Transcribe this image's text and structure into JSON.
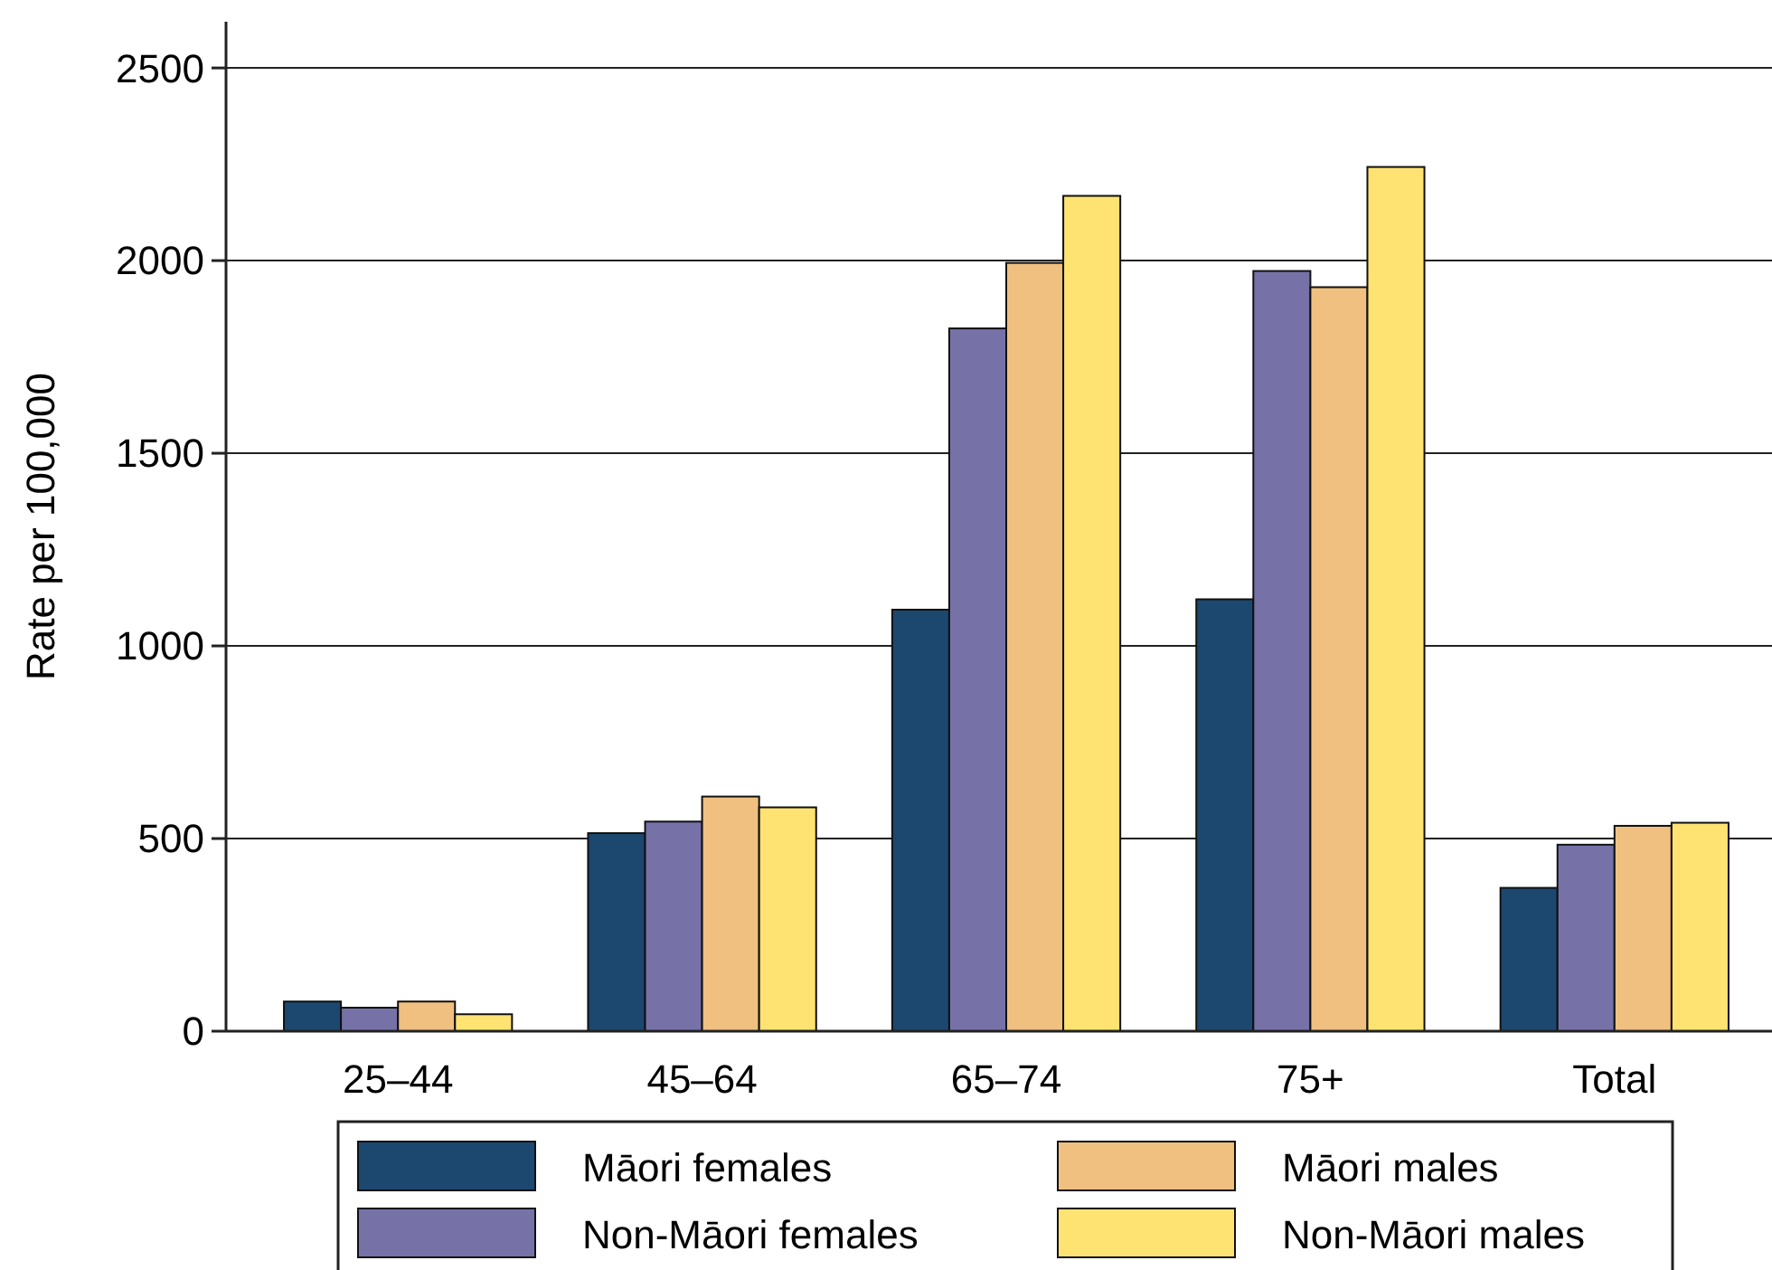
{
  "chart_data": {
    "type": "bar",
    "ylabel": "Rate per 100,000",
    "categories": [
      "25–44",
      "45–64",
      "65–74",
      "75+",
      "Total"
    ],
    "series": [
      {
        "name": "Māori females",
        "color": "#1c4870",
        "values": [
          77,
          514,
          1094,
          1121,
          372
        ]
      },
      {
        "name": "Non-Māori females",
        "color": "#7672a8",
        "values": [
          61,
          544,
          1824,
          1973,
          484
        ]
      },
      {
        "name": "Māori males",
        "color": "#f0c080",
        "values": [
          77,
          609,
          1994,
          1931,
          533
        ]
      },
      {
        "name": "Non-Māori males",
        "color": "#fee372",
        "values": [
          44,
          581,
          2168,
          2243,
          541
        ]
      }
    ],
    "ylim": [
      0,
      2620
    ],
    "yticks": [
      0,
      500,
      1000,
      1500,
      2000,
      2500
    ],
    "grid": "y",
    "legend": "bottom"
  }
}
